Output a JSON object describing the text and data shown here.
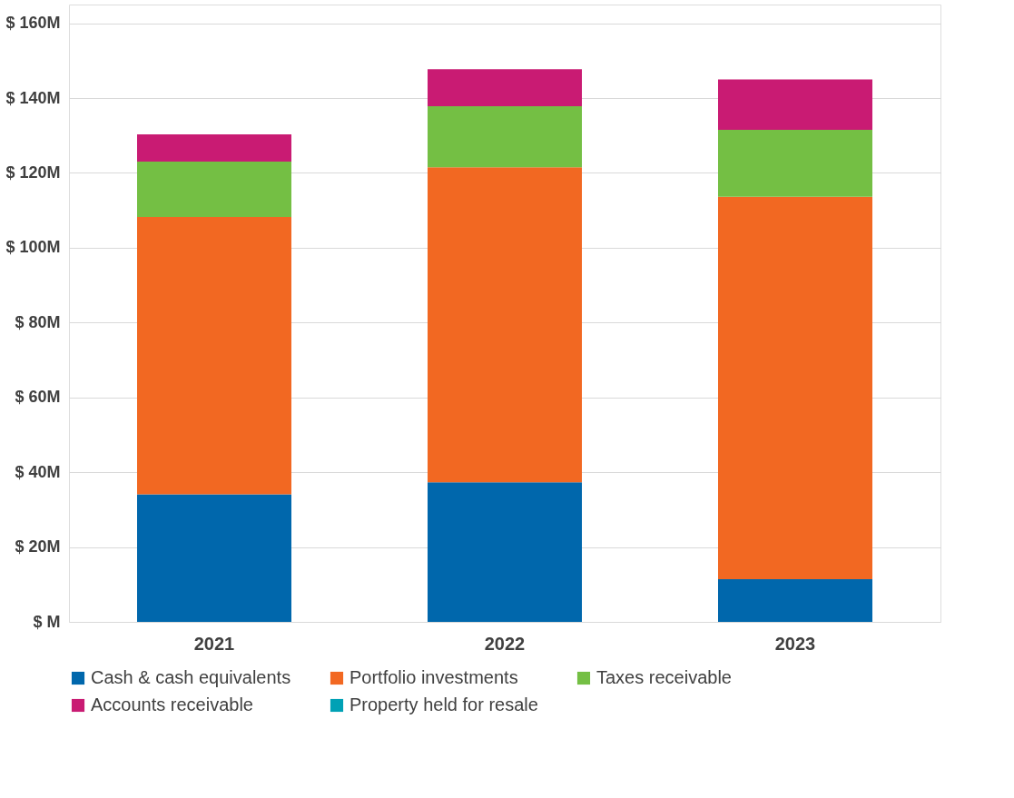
{
  "chart_data": {
    "type": "bar",
    "stacked": true,
    "categories": [
      "2021",
      "2022",
      "2023"
    ],
    "series": [
      {
        "name": "Cash & cash equivalents",
        "color": "#0067ac",
        "values": [
          34.1,
          37.3,
          11.4
        ]
      },
      {
        "name": "Portfolio investments",
        "color": "#f26822",
        "values": [
          74.1,
          84.2,
          102.2
        ]
      },
      {
        "name": "Taxes receivable",
        "color": "#74bf44",
        "values": [
          14.8,
          16.3,
          17.9
        ]
      },
      {
        "name": "Accounts receivable",
        "color": "#c91b73",
        "values": [
          7.3,
          9.9,
          13.5
        ]
      },
      {
        "name": "Property held for resale",
        "color": "#00a1b5",
        "values": [
          0,
          0,
          0
        ]
      }
    ],
    "ylim": [
      0,
      165
    ],
    "yticks": [
      {
        "value": 0,
        "label": "$ M"
      },
      {
        "value": 20,
        "label": "$ 20M"
      },
      {
        "value": 40,
        "label": "$ 40M"
      },
      {
        "value": 60,
        "label": "$ 60M"
      },
      {
        "value": 80,
        "label": "$ 80M"
      },
      {
        "value": 100,
        "label": "$ 100M"
      },
      {
        "value": 120,
        "label": "$ 120M"
      },
      {
        "value": 140,
        "label": "$ 140M"
      },
      {
        "value": 160,
        "label": "$ 160M"
      }
    ],
    "grid": "y",
    "legend": "bottom"
  }
}
